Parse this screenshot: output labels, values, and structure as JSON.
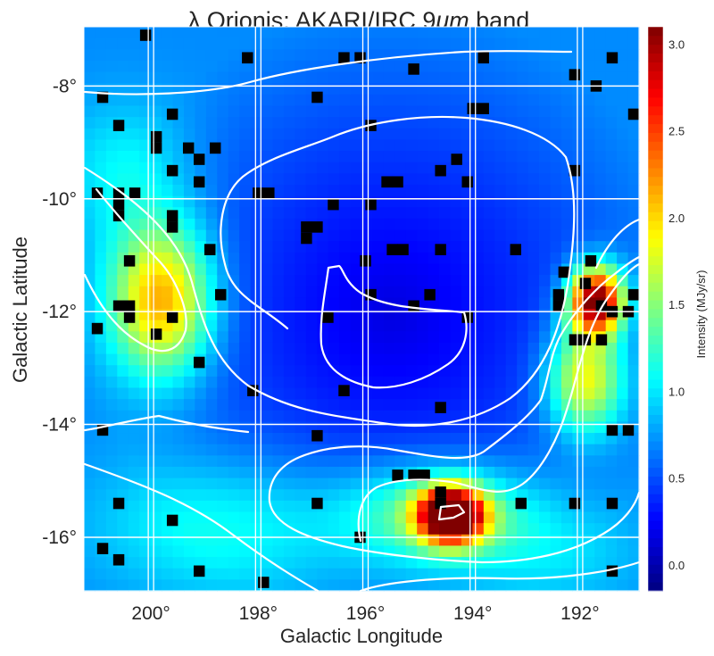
{
  "chart_data": {
    "type": "heatmap",
    "title": "λ Orionis: AKARI/IRC 9μm band",
    "title_prefix": "λ Orionis: AKARI/IRC 9",
    "title_mu": "μm",
    "title_suffix": " band",
    "xlabel": "Galactic Longitude",
    "ylabel": "Galactic Latitude",
    "xlim": [
      201.25,
      190.9
    ],
    "ylim": [
      -16.95,
      -6.95
    ],
    "x_ticks": [
      200,
      198,
      196,
      194,
      192
    ],
    "x_tick_labels": [
      "200°",
      "198°",
      "196°",
      "194°",
      "192°"
    ],
    "y_ticks": [
      -8,
      -10,
      -12,
      -14,
      -16
    ],
    "y_tick_labels": [
      "-8°",
      "-10°",
      "-12°",
      "-14°",
      "-16°"
    ],
    "colormap": "jet",
    "colorbar": {
      "label": "Intensity (MJy/sr)",
      "range": [
        -0.15,
        3.1
      ],
      "ticks": [
        0.0,
        0.5,
        1.0,
        1.5,
        2.0,
        2.5,
        3.0
      ],
      "tick_labels": [
        "0.0",
        "0.5",
        "1.0",
        "1.5",
        "2.0",
        "2.5",
        "3.0"
      ]
    },
    "masked_color": "#000000",
    "grid": true,
    "grid_color": "#ffffff",
    "contour_color": "#ffffff",
    "field_features": [
      {
        "kind": "ring_center_minimum",
        "l": 195.5,
        "b": -12.0,
        "value": 0.1
      },
      {
        "kind": "peak",
        "l": 194.4,
        "b": -15.6,
        "value": 3.0
      },
      {
        "kind": "peak",
        "l": 191.7,
        "b": -11.8,
        "value": 2.8
      },
      {
        "kind": "peak",
        "l": 192.0,
        "b": -13.2,
        "value": 2.0
      },
      {
        "kind": "peak",
        "l": 199.8,
        "b": -11.9,
        "value": 1.8
      },
      {
        "kind": "peak",
        "l": 198.0,
        "b": -15.8,
        "value": 1.3
      }
    ],
    "masked_pixels": [
      [
        200.1,
        -7.1
      ],
      [
        198.2,
        -7.5
      ],
      [
        196.4,
        -7.5
      ],
      [
        196.1,
        -7.5
      ],
      [
        193.8,
        -7.5
      ],
      [
        191.4,
        -7.5
      ],
      [
        195.1,
        -7.7
      ],
      [
        192.1,
        -7.8
      ],
      [
        191.7,
        -8.0
      ],
      [
        196.9,
        -8.2
      ],
      [
        200.9,
        -8.2
      ],
      [
        194.0,
        -8.4
      ],
      [
        193.8,
        -8.4
      ],
      [
        195.9,
        -8.7
      ],
      [
        191.0,
        -8.5
      ],
      [
        199.6,
        -8.5
      ],
      [
        200.6,
        -8.7
      ],
      [
        199.9,
        -8.9
      ],
      [
        199.9,
        -9.1
      ],
      [
        199.3,
        -9.1
      ],
      [
        198.8,
        -9.1
      ],
      [
        199.1,
        -9.3
      ],
      [
        194.3,
        -9.3
      ],
      [
        192.1,
        -9.5
      ],
      [
        199.6,
        -9.5
      ],
      [
        199.1,
        -9.7
      ],
      [
        195.6,
        -9.7
      ],
      [
        194.1,
        -9.7
      ],
      [
        195.4,
        -9.7
      ],
      [
        194.6,
        -9.5
      ],
      [
        200.6,
        -9.9
      ],
      [
        200.3,
        -9.9
      ],
      [
        201.0,
        -9.9
      ],
      [
        198.0,
        -9.9
      ],
      [
        197.8,
        -9.9
      ],
      [
        196.6,
        -10.1
      ],
      [
        195.9,
        -10.1
      ],
      [
        200.6,
        -10.1
      ],
      [
        200.6,
        -10.3
      ],
      [
        199.6,
        -10.3
      ],
      [
        199.6,
        -10.5
      ],
      [
        197.1,
        -10.5
      ],
      [
        197.1,
        -10.7
      ],
      [
        196.9,
        -10.5
      ],
      [
        195.5,
        -10.9
      ],
      [
        195.3,
        -10.9
      ],
      [
        194.6,
        -10.9
      ],
      [
        193.2,
        -10.9
      ],
      [
        198.9,
        -10.9
      ],
      [
        191.8,
        -11.1
      ],
      [
        192.3,
        -11.3
      ],
      [
        200.4,
        -11.1
      ],
      [
        196.0,
        -11.1
      ],
      [
        191.9,
        -11.5
      ],
      [
        195.9,
        -11.7
      ],
      [
        195.1,
        -11.9
      ],
      [
        194.8,
        -11.7
      ],
      [
        198.7,
        -11.7
      ],
      [
        192.4,
        -11.7
      ],
      [
        192.4,
        -11.9
      ],
      [
        191.6,
        -11.9
      ],
      [
        191.4,
        -12.0
      ],
      [
        191.1,
        -12.0
      ],
      [
        191.0,
        -11.7
      ],
      [
        200.6,
        -11.9
      ],
      [
        200.4,
        -11.9
      ],
      [
        200.4,
        -12.1
      ],
      [
        199.6,
        -12.1
      ],
      [
        196.7,
        -12.1
      ],
      [
        194.1,
        -12.1
      ],
      [
        191.9,
        -12.5
      ],
      [
        192.1,
        -12.5
      ],
      [
        191.6,
        -12.5
      ],
      [
        199.9,
        -12.4
      ],
      [
        201.0,
        -12.3
      ],
      [
        199.1,
        -12.9
      ],
      [
        198.1,
        -13.4
      ],
      [
        196.4,
        -13.4
      ],
      [
        194.6,
        -13.7
      ],
      [
        196.9,
        -14.2
      ],
      [
        191.4,
        -14.1
      ],
      [
        191.1,
        -14.1
      ],
      [
        200.9,
        -14.1
      ],
      [
        195.4,
        -14.9
      ],
      [
        195.1,
        -14.9
      ],
      [
        194.9,
        -14.9
      ],
      [
        194.6,
        -15.2
      ],
      [
        193.1,
        -15.4
      ],
      [
        196.9,
        -15.4
      ],
      [
        200.6,
        -15.4
      ],
      [
        192.1,
        -15.4
      ],
      [
        191.4,
        -15.4
      ],
      [
        194.6,
        -15.4
      ],
      [
        199.6,
        -15.7
      ],
      [
        196.1,
        -16.0
      ],
      [
        200.9,
        -16.2
      ],
      [
        200.6,
        -16.4
      ],
      [
        199.1,
        -16.6
      ],
      [
        197.9,
        -16.8
      ],
      [
        191.4,
        -16.6
      ]
    ]
  }
}
